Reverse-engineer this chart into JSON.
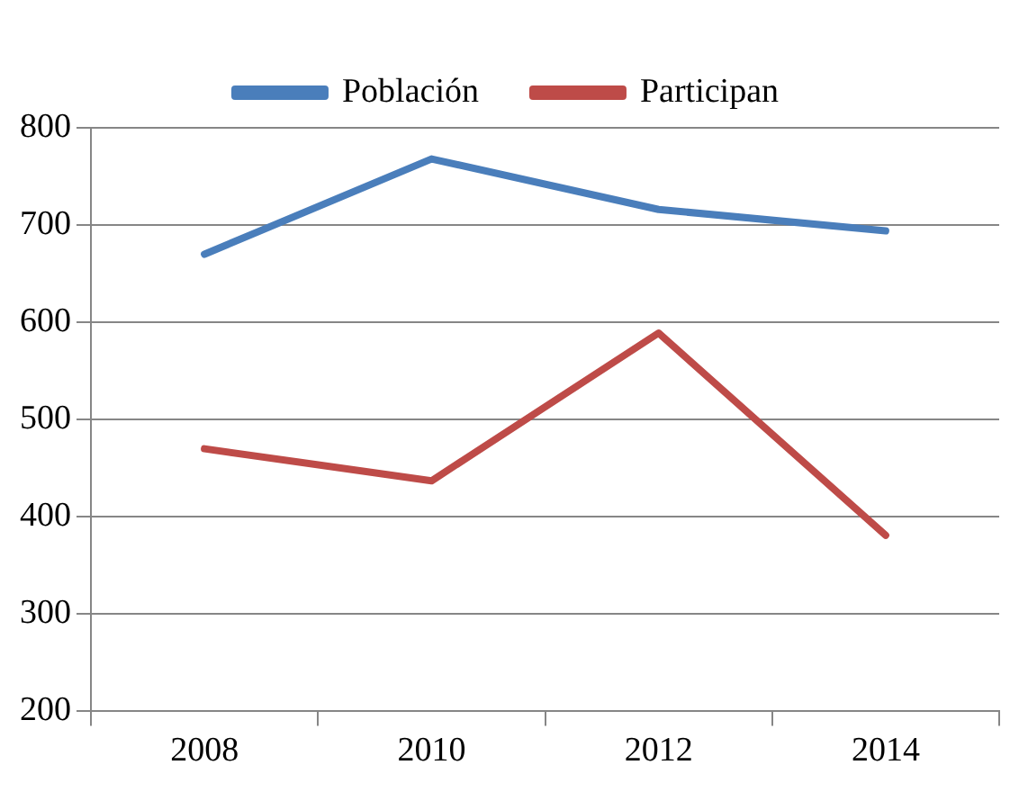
{
  "chart_data": {
    "type": "line",
    "categories": [
      "2008",
      "2010",
      "2012",
      "2014"
    ],
    "series": [
      {
        "name": "Población",
        "color": "#4a7ebb",
        "values": [
          670,
          768,
          716,
          694
        ]
      },
      {
        "name": "Participan",
        "color": "#be4b48",
        "values": [
          470,
          437,
          589,
          381
        ]
      }
    ],
    "ylim": [
      200,
      800
    ],
    "yticks": [
      200,
      300,
      400,
      500,
      600,
      700,
      800
    ],
    "grid": "y",
    "legend": "top",
    "marker": "none",
    "line_style": "solid"
  }
}
